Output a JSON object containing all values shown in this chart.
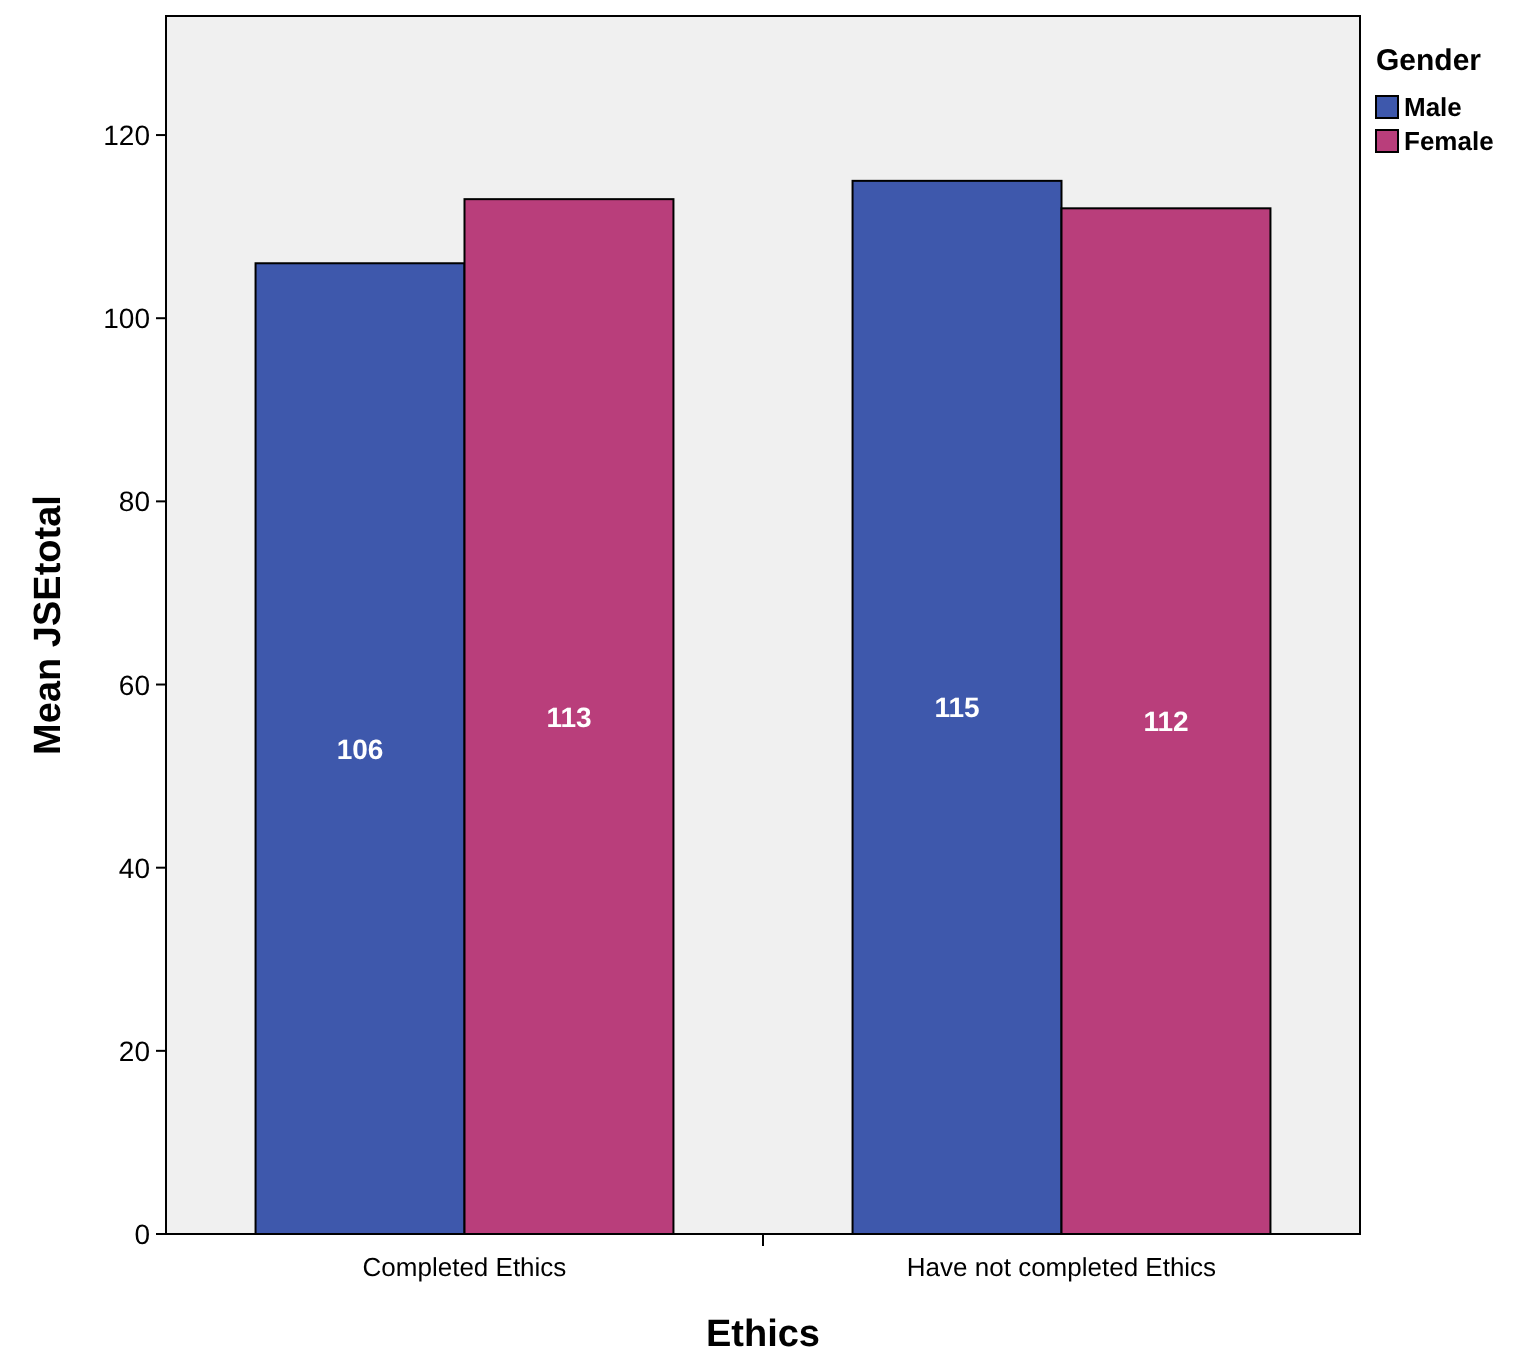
{
  "chart_data": {
    "type": "bar",
    "xlabel": "Ethics",
    "ylabel": "Mean JSEtotal",
    "legend_title": "Gender",
    "categories": [
      "Completed Ethics",
      "Have not completed Ethics"
    ],
    "series": [
      {
        "name": "Male",
        "color": "#3e58ac",
        "values": [
          106,
          115
        ]
      },
      {
        "name": "Female",
        "color": "#b93e7b",
        "values": [
          113,
          112
        ]
      }
    ],
    "ylim": [
      0,
      133
    ],
    "yticks": [
      0,
      20,
      40,
      60,
      80,
      100,
      120
    ],
    "grid": false,
    "legend": "top right",
    "data_labels": true
  }
}
